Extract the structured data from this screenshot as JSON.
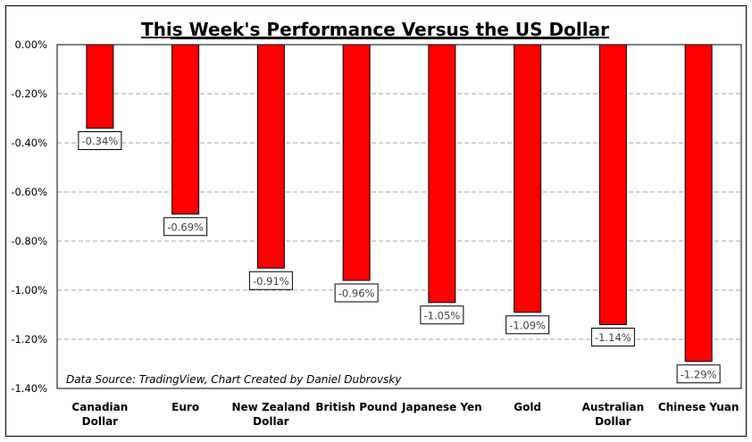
{
  "chart_data": {
    "type": "bar",
    "title": "This Week's Performance Versus the US Dollar",
    "categories": [
      "Canadian Dollar",
      "Euro",
      "New Zealand Dollar",
      "British Pound",
      "Japanese Yen",
      "Gold",
      "Australian Dollar",
      "Chinese Yuan"
    ],
    "category_lines": [
      [
        "Canadian",
        "Dollar"
      ],
      [
        "Euro"
      ],
      [
        "New Zealand",
        "Dollar"
      ],
      [
        "British Pound"
      ],
      [
        "Japanese Yen"
      ],
      [
        "Gold"
      ],
      [
        "Australian",
        "Dollar"
      ],
      [
        "Chinese Yuan"
      ]
    ],
    "values": [
      -0.34,
      -0.69,
      -0.91,
      -0.96,
      -1.05,
      -1.09,
      -1.14,
      -1.29
    ],
    "data_labels": [
      "-0.34%",
      "-0.69%",
      "-0.91%",
      "-0.96%",
      "-1.05%",
      "-1.09%",
      "-1.14%",
      "-1.29%"
    ],
    "ylim": [
      -1.4,
      0
    ],
    "yticks": [
      "0.00%",
      "-0.20%",
      "-0.40%",
      "-0.60%",
      "-0.80%",
      "-1.00%",
      "-1.20%",
      "-1.40%"
    ],
    "ytick_values": [
      0,
      -0.2,
      -0.4,
      -0.6,
      -0.8,
      -1.0,
      -1.2,
      -1.4
    ],
    "grid": "horizontal dashed",
    "bar_color": "#ff0000",
    "annotation": "Data Source: TradingView, Chart Created by Daniel Dubrovsky"
  }
}
